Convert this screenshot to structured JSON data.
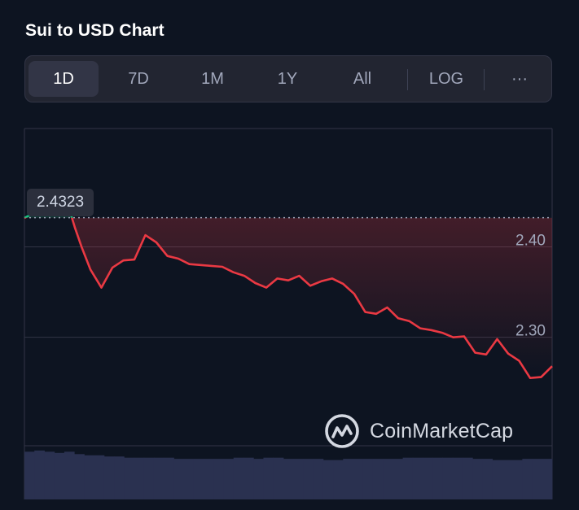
{
  "header": {
    "title": "Sui to USD Chart"
  },
  "range_tabs": [
    {
      "label": "1D",
      "active": true
    },
    {
      "label": "7D",
      "active": false
    },
    {
      "label": "1M",
      "active": false
    },
    {
      "label": "1Y",
      "active": false
    },
    {
      "label": "All",
      "active": false
    },
    {
      "label": "LOG",
      "active": false
    },
    {
      "label": "···",
      "active": false
    }
  ],
  "watermark": {
    "text": "CoinMarketCap",
    "icon": "coinmarketcap-logo-icon"
  },
  "colors": {
    "up": "#16c784",
    "down": "#ea3943",
    "background": "#0d1421",
    "grid": "#323546",
    "volume": "#2a3150"
  },
  "chart_data": {
    "type": "line",
    "current_value": "2.4323",
    "reference_value": 2.4323,
    "ylim": [
      2.18,
      2.531
    ],
    "yticks": [
      {
        "value": 2.4,
        "label": "2.40"
      },
      {
        "value": 2.3,
        "label": "2.30"
      }
    ],
    "grid": true,
    "x": [
      0,
      0.3,
      0.6,
      0.8,
      1.0,
      1.3,
      1.6,
      2.0,
      2.3,
      2.6,
      3.0,
      3.5,
      4.0,
      4.5,
      5.0,
      5.5,
      6.0,
      6.5,
      7.0,
      7.5,
      8.0,
      8.5,
      9.0,
      9.5,
      10.0,
      10.5,
      11.0,
      11.5,
      12.0,
      12.5,
      13.0,
      13.5,
      14.0,
      14.5,
      15.0,
      15.5,
      16.0,
      16.5,
      17.0,
      17.5,
      18.0,
      18.5,
      19.0,
      19.5,
      20.0,
      20.5,
      21.0,
      21.5,
      22.0,
      22.5,
      23.0,
      23.5,
      24.0
    ],
    "values": [
      2.432,
      2.436,
      2.453,
      2.46,
      2.462,
      2.462,
      2.458,
      2.445,
      2.421,
      2.4,
      2.375,
      2.355,
      2.377,
      2.385,
      2.386,
      2.413,
      2.405,
      2.39,
      2.387,
      2.381,
      2.38,
      2.379,
      2.378,
      2.372,
      2.368,
      2.36,
      2.355,
      2.365,
      2.363,
      2.368,
      2.357,
      2.362,
      2.365,
      2.359,
      2.348,
      2.328,
      2.326,
      2.333,
      2.321,
      2.318,
      2.31,
      2.308,
      2.305,
      2.3,
      2.301,
      2.283,
      2.281,
      2.298,
      2.282,
      2.274,
      2.255,
      2.256,
      2.268
    ],
    "volume": [
      0.4,
      0.41,
      0.4,
      0.39,
      0.4,
      0.38,
      0.37,
      0.37,
      0.36,
      0.36,
      0.35,
      0.35,
      0.35,
      0.35,
      0.35,
      0.34,
      0.34,
      0.34,
      0.34,
      0.34,
      0.34,
      0.35,
      0.35,
      0.34,
      0.35,
      0.35,
      0.34,
      0.34,
      0.34,
      0.34,
      0.33,
      0.33,
      0.34,
      0.34,
      0.34,
      0.34,
      0.34,
      0.34,
      0.35,
      0.35,
      0.35,
      0.35,
      0.35,
      0.35,
      0.35,
      0.34,
      0.34,
      0.33,
      0.33,
      0.33,
      0.34,
      0.34,
      0.34
    ]
  }
}
